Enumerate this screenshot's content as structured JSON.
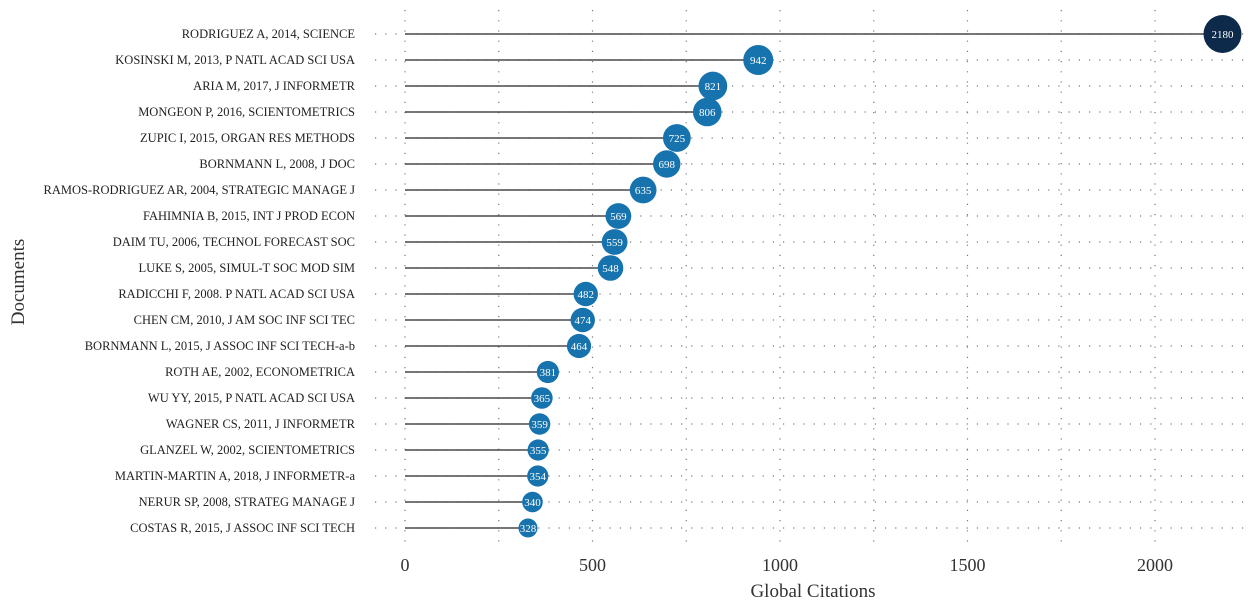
{
  "chart_data": {
    "type": "lollipop",
    "xlabel": "Global Citations",
    "ylabel": "Documents",
    "xlim": [
      0,
      2200
    ],
    "xticks": [
      0,
      500,
      1000,
      1500,
      2000
    ],
    "grid": true,
    "colors": {
      "point_high": "#0d2a4a",
      "point": "#1673ae",
      "stem": "#4a4a4a"
    },
    "categories": [
      "RODRIGUEZ A, 2014, SCIENCE",
      "KOSINSKI M, 2013, P NATL ACAD SCI USA",
      "ARIA M, 2017, J INFORMETR",
      "MONGEON P, 2016, SCIENTOMETRICS",
      "ZUPIC I, 2015, ORGAN RES METHODS",
      "BORNMANN L, 2008, J DOC",
      "RAMOS-RODRIGUEZ AR, 2004, STRATEGIC MANAGE J",
      "FAHIMNIA B, 2015, INT J PROD ECON",
      "DAIM TU, 2006, TECHNOL FORECAST SOC",
      "LUKE S, 2005, SIMUL-T SOC MOD SIM",
      "RADICCHI F, 2008. P NATL ACAD SCI USA",
      "CHEN CM, 2010, J AM SOC INF SCI TEC",
      "BORNMANN L, 2015, J ASSOC INF SCI TECH-a-b",
      "ROTH AE, 2002, ECONOMETRICA",
      "WU YY, 2015, P NATL ACAD SCI USA",
      "WAGNER CS, 2011, J INFORMETR",
      "GLANZEL W, 2002, SCIENTOMETRICS",
      "MARTIN-MARTIN A, 2018, J INFORMETR-a",
      "NERUR SP, 2008, STRATEG MANAGE J",
      "COSTAS R, 2015, J ASSOC INF SCI TECH"
    ],
    "values": [
      2180,
      942,
      821,
      806,
      725,
      698,
      635,
      569,
      559,
      548,
      482,
      474,
      464,
      381,
      365,
      359,
      355,
      354,
      340,
      328
    ]
  }
}
